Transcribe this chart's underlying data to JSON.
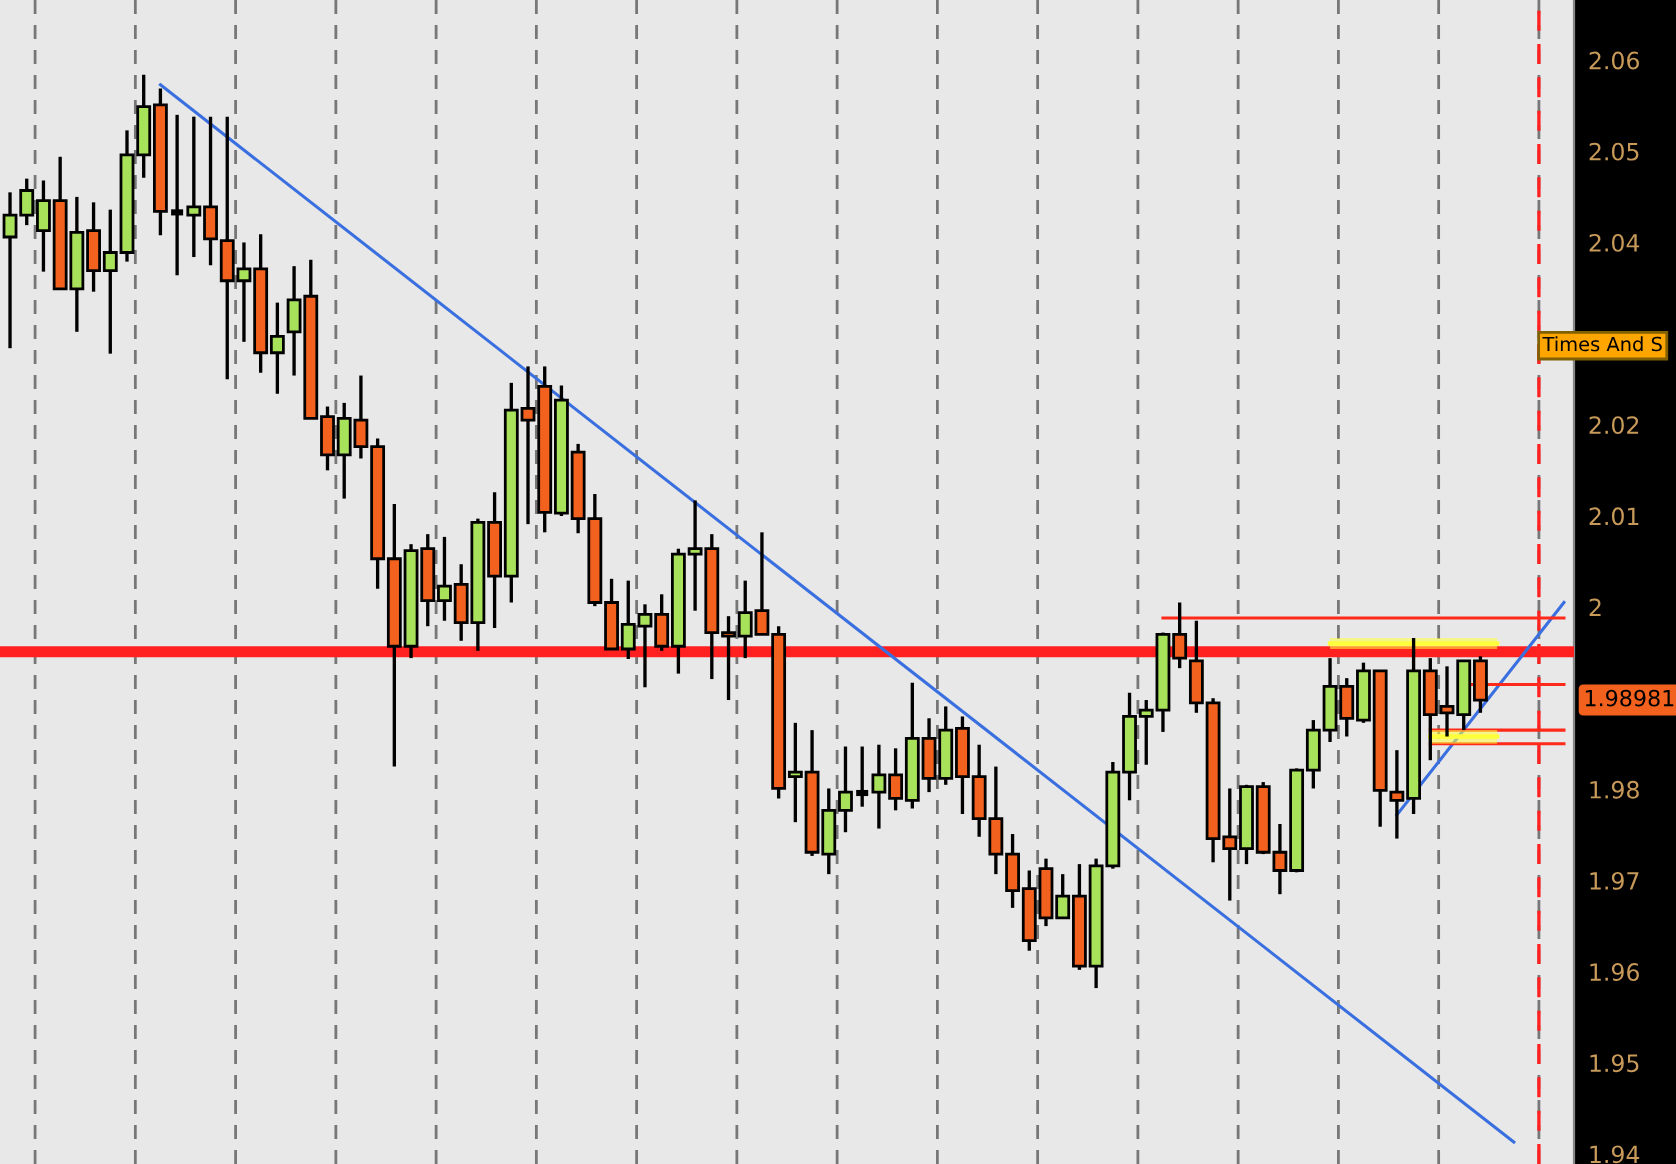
{
  "chart_data": {
    "type": "candlestick",
    "categories": [
      null,
      null,
      null,
      null,
      null,
      null,
      null,
      null,
      null,
      null,
      null,
      null,
      null,
      null,
      null,
      null,
      null,
      null,
      null,
      null,
      null,
      null,
      null,
      null,
      null,
      null,
      null,
      null,
      null,
      null,
      null,
      null,
      null,
      null,
      null,
      null,
      null,
      null,
      null,
      null,
      null,
      null,
      null,
      null,
      null,
      null,
      null,
      null,
      null,
      null,
      null,
      null,
      null,
      null,
      null,
      null,
      null,
      null,
      null,
      null,
      null,
      null,
      null,
      null,
      null,
      null,
      null,
      null,
      null,
      null,
      null,
      null,
      null,
      null,
      null,
      null,
      null,
      null,
      null,
      null,
      null,
      null,
      null,
      null,
      null,
      null,
      null,
      null,
      null,
      null,
      null,
      null,
      null,
      null
    ],
    "ohlc": [
      [
        2.0406,
        2.0455,
        2.0284,
        2.043
      ],
      [
        2.043,
        2.047,
        2.0419,
        2.0457
      ],
      [
        2.0413,
        2.0468,
        2.0368,
        2.0446
      ],
      [
        2.0446,
        2.0494,
        2.0349,
        2.0349
      ],
      [
        2.0349,
        2.045,
        2.0302,
        2.0411
      ],
      [
        2.0413,
        2.0444,
        2.0346,
        2.0369
      ],
      [
        2.0369,
        2.0436,
        2.0278,
        2.0389
      ],
      [
        2.0389,
        2.0523,
        2.0379,
        2.0496
      ],
      [
        2.0496,
        2.0584,
        2.0471,
        2.0549
      ],
      [
        2.0551,
        2.0569,
        2.0408,
        2.0434
      ],
      [
        2.0433,
        2.054,
        2.0364,
        2.0433
      ],
      [
        2.043,
        2.0538,
        2.0384,
        2.0439
      ],
      [
        2.0439,
        2.0538,
        2.0375,
        2.0404
      ],
      [
        2.0402,
        2.0538,
        2.025,
        2.0358
      ],
      [
        2.0358,
        2.04,
        2.0291,
        2.0371
      ],
      [
        2.0371,
        2.0409,
        2.0257,
        2.0279
      ],
      [
        2.0279,
        2.0334,
        2.0234,
        2.0297
      ],
      [
        2.0302,
        2.0374,
        2.0254,
        2.0337
      ],
      [
        2.0341,
        2.0381,
        2.0207,
        2.0207
      ],
      [
        2.0209,
        2.022,
        2.015,
        2.0167
      ],
      [
        2.0167,
        2.0224,
        2.0119,
        2.0207
      ],
      [
        2.0205,
        2.0254,
        2.0163,
        2.0176
      ],
      [
        2.0176,
        2.0185,
        2.002,
        2.0053
      ],
      [
        2.0053,
        2.0113,
        1.9825,
        1.9957
      ],
      [
        1.9957,
        2.0069,
        1.9944,
        2.0062
      ],
      [
        2.0064,
        2.008,
        1.9979,
        2.0007
      ],
      [
        2.0007,
        2.0077,
        1.9985,
        2.0023
      ],
      [
        2.0025,
        2.0047,
        1.9963,
        1.9983
      ],
      [
        1.9983,
        2.0097,
        1.9952,
        2.0093
      ],
      [
        2.0093,
        2.0126,
        1.9977,
        2.0034
      ],
      [
        2.0034,
        2.0246,
        2.0005,
        2.0216
      ],
      [
        2.0218,
        2.0264,
        2.0091,
        2.0205
      ],
      [
        2.0242,
        2.0264,
        2.0082,
        2.0104
      ],
      [
        2.0103,
        2.0243,
        2.01,
        2.0227
      ],
      [
        2.017,
        2.0179,
        2.0081,
        2.0097
      ],
      [
        2.0097,
        2.0124,
        2.0001,
        2.0005
      ],
      [
        2.0005,
        2.0031,
        1.9954,
        1.9954
      ],
      [
        1.9954,
        2.0029,
        1.9943,
        1.9981
      ],
      [
        1.9979,
        2.0003,
        1.9912,
        1.9992
      ],
      [
        1.9992,
        2.0014,
        1.9952,
        1.9957
      ],
      [
        1.9957,
        2.0064,
        1.9927,
        2.0058
      ],
      [
        2.0058,
        2.0117,
        1.9996,
        2.0064
      ],
      [
        2.0064,
        2.008,
        1.9921,
        1.9972
      ],
      [
        1.9972,
        1.999,
        1.9898,
        1.9968
      ],
      [
        1.9968,
        2.0029,
        1.9944,
        1.9994
      ],
      [
        1.9996,
        2.0082,
        1.997,
        1.997
      ],
      [
        1.997,
        1.9979,
        1.979,
        1.9801
      ],
      [
        1.9814,
        1.9873,
        1.9764,
        1.9819
      ],
      [
        1.9819,
        1.9865,
        1.9727,
        1.9731
      ],
      [
        1.9729,
        1.9801,
        1.9707,
        1.9777
      ],
      [
        1.9777,
        1.9847,
        1.9753,
        1.9797
      ],
      [
        1.9796,
        1.9847,
        1.9781,
        1.9796
      ],
      [
        1.9797,
        1.9849,
        1.9757,
        1.9816
      ],
      [
        1.9816,
        1.9845,
        1.9777,
        1.979
      ],
      [
        1.9788,
        1.9917,
        1.9779,
        1.9856
      ],
      [
        1.9856,
        1.9878,
        1.9797,
        1.9812
      ],
      [
        1.9812,
        1.9891,
        1.9805,
        1.9865
      ],
      [
        1.9867,
        1.988,
        1.9773,
        1.9814
      ],
      [
        1.9814,
        1.9849,
        1.9748,
        1.9768
      ],
      [
        1.9768,
        1.9825,
        1.9707,
        1.9729
      ],
      [
        1.9729,
        1.9751,
        1.967,
        1.9689
      ],
      [
        1.9691,
        1.9711,
        1.9623,
        1.9634
      ],
      [
        1.9713,
        1.9724,
        1.965,
        1.9659
      ],
      [
        1.9659,
        1.9707,
        1.9659,
        1.9683
      ],
      [
        1.9683,
        1.9718,
        1.9602,
        1.9606
      ],
      [
        1.9606,
        1.9724,
        1.9582,
        1.9716
      ],
      [
        1.9716,
        1.983,
        1.9713,
        1.9819
      ],
      [
        1.9819,
        1.9906,
        1.9788,
        1.988
      ],
      [
        1.988,
        1.9898,
        1.9827,
        1.9887
      ],
      [
        1.9887,
        1.9972,
        1.9863,
        1.997
      ],
      [
        1.997,
        2.0005,
        1.9933,
        1.9944
      ],
      [
        1.9941,
        1.9985,
        1.9884,
        1.9895
      ],
      [
        1.9895,
        1.99,
        1.972,
        1.9746
      ],
      [
        1.9748,
        1.9801,
        1.9678,
        1.9735
      ],
      [
        1.9735,
        1.9805,
        1.9718,
        1.9803
      ],
      [
        1.9803,
        1.9808,
        1.9729,
        1.9731
      ],
      [
        1.9731,
        1.9762,
        1.9685,
        1.9711
      ],
      [
        1.9711,
        1.9823,
        1.9709,
        1.9821
      ],
      [
        1.9821,
        1.9876,
        1.9801,
        1.9865
      ],
      [
        1.9865,
        1.9944,
        1.9852,
        1.9913
      ],
      [
        1.9913,
        1.9922,
        1.9858,
        1.9878
      ],
      [
        1.9876,
        1.9939,
        1.9873,
        1.993
      ],
      [
        1.993,
        1.993,
        1.9759,
        1.9799
      ],
      [
        1.9797,
        1.9843,
        1.9746,
        1.9788
      ],
      [
        1.979,
        1.9966,
        1.9773,
        1.993
      ],
      [
        1.993,
        1.9944,
        1.9832,
        1.9882
      ],
      [
        1.9891,
        1.9935,
        1.9858,
        1.9884
      ],
      [
        1.9882,
        1.9941,
        1.9865,
        1.9941
      ],
      [
        1.9941,
        1.9946,
        1.9884,
        1.9898
      ],
      null,
      null,
      null,
      null,
      null
    ],
    "colors": [
      "#a8e25a",
      "#a8e25a",
      "#a8e25a",
      "#f2621e",
      "#a8e25a",
      "#f2621e",
      "#a8e25a",
      "#a8e25a",
      "#a8e25a",
      "#f2621e",
      "#000000",
      "#a8e25a",
      "#f2621e",
      "#f2621e",
      "#a8e25a",
      "#f2621e",
      "#a8e25a",
      "#a8e25a",
      "#f2621e",
      "#f2621e",
      "#a8e25a",
      "#f2621e",
      "#f2621e",
      "#f2621e",
      "#a8e25a",
      "#f2621e",
      "#a8e25a",
      "#f2621e",
      "#a8e25a",
      "#f2621e",
      "#a8e25a",
      "#f2621e",
      "#f2621e",
      "#a8e25a",
      "#f2621e",
      "#f2621e",
      "#f2621e",
      "#a8e25a",
      "#a8e25a",
      "#f2621e",
      "#a8e25a",
      "#a8e25a",
      "#f2621e",
      "#f2621e",
      "#a8e25a",
      "#f2621e",
      "#f2621e",
      "#a8e25a",
      "#f2621e",
      "#a8e25a",
      "#a8e25a",
      "#000000",
      "#a8e25a",
      "#f2621e",
      "#a8e25a",
      "#f2621e",
      "#a8e25a",
      "#f2621e",
      "#f2621e",
      "#f2621e",
      "#f2621e",
      "#f2621e",
      "#f2621e",
      "#a8e25a",
      "#f2621e",
      "#a8e25a",
      "#a8e25a",
      "#a8e25a",
      "#a8e25a",
      "#a8e25a",
      "#f2621e",
      "#f2621e",
      "#f2621e",
      "#f2621e",
      "#a8e25a",
      "#f2621e",
      "#f2621e",
      "#a8e25a",
      "#a8e25a",
      "#a8e25a",
      "#f2621e",
      "#a8e25a",
      "#f2621e",
      "#f2621e",
      "#a8e25a",
      "#f2621e",
      "#f2621e",
      "#a8e25a",
      "#f2621e",
      null,
      null,
      null,
      null,
      null
    ],
    "series": [
      {
        "type": "line",
        "color": "#3a6fe0",
        "values": [
          null,
          null,
          null,
          null,
          null,
          null,
          null,
          null,
          null,
          2.0573,
          null,
          null,
          null,
          null,
          null,
          null,
          null,
          null,
          null,
          null,
          null,
          null,
          null,
          null,
          null,
          null,
          null,
          null,
          null,
          null,
          null,
          null,
          null,
          null,
          null,
          null,
          null,
          null,
          null,
          null,
          null,
          null,
          null,
          null,
          null,
          null,
          null,
          null,
          null,
          null,
          null,
          null,
          null,
          null,
          null,
          null,
          null,
          null,
          null,
          null,
          null,
          null,
          null,
          null,
          null,
          null,
          null,
          null,
          null,
          null,
          null,
          null,
          null,
          null,
          null,
          null,
          null,
          null,
          null,
          null,
          null,
          null,
          null,
          null,
          null,
          null,
          null,
          null,
          null,
          null,
          1.9413,
          null,
          null,
          null
        ]
      },
      {
        "type": "line",
        "color": "#3a6fe0",
        "values": [
          null,
          null,
          null,
          null,
          null,
          null,
          null,
          null,
          null,
          null,
          null,
          null,
          null,
          null,
          null,
          null,
          null,
          null,
          null,
          null,
          null,
          null,
          null,
          null,
          null,
          null,
          null,
          null,
          null,
          null,
          null,
          null,
          null,
          null,
          null,
          null,
          null,
          null,
          null,
          null,
          null,
          null,
          null,
          null,
          null,
          null,
          null,
          null,
          null,
          null,
          null,
          null,
          null,
          null,
          null,
          null,
          null,
          null,
          null,
          null,
          null,
          null,
          null,
          null,
          null,
          null,
          null,
          null,
          null,
          null,
          null,
          null,
          null,
          null,
          null,
          null,
          null,
          null,
          null,
          null,
          null,
          null,
          null,
          1.9772,
          null,
          null,
          null,
          null,
          null,
          null,
          null,
          null,
          null,
          2.0005
        ]
      },
      {
        "type": "line",
        "color": "#ff2a1a",
        "values": [
          null,
          null,
          null,
          null,
          null,
          null,
          null,
          null,
          null,
          null,
          null,
          null,
          null,
          null,
          null,
          null,
          null,
          null,
          null,
          null,
          null,
          null,
          null,
          null,
          null,
          null,
          null,
          null,
          null,
          null,
          null,
          null,
          null,
          null,
          null,
          null,
          null,
          null,
          null,
          null,
          null,
          null,
          null,
          null,
          null,
          null,
          null,
          null,
          null,
          null,
          null,
          null,
          null,
          null,
          null,
          null,
          null,
          null,
          null,
          null,
          null,
          null,
          null,
          null,
          null,
          null,
          null,
          null,
          null,
          1.9988,
          null,
          null,
          null,
          null,
          null,
          null,
          null,
          null,
          null,
          null,
          null,
          null,
          null,
          null,
          null,
          null,
          null,
          null,
          null,
          null,
          null,
          null,
          null,
          1.9988
        ]
      },
      {
        "type": "line",
        "color": "#ff2a1a",
        "values": [
          null,
          null,
          null,
          null,
          null,
          null,
          null,
          null,
          null,
          null,
          null,
          null,
          null,
          null,
          null,
          null,
          null,
          null,
          null,
          null,
          null,
          null,
          null,
          null,
          null,
          null,
          null,
          null,
          null,
          null,
          null,
          null,
          null,
          null,
          null,
          null,
          null,
          null,
          null,
          null,
          null,
          null,
          null,
          null,
          null,
          null,
          null,
          null,
          null,
          null,
          null,
          null,
          null,
          null,
          null,
          null,
          null,
          null,
          null,
          null,
          null,
          null,
          null,
          null,
          null,
          null,
          null,
          null,
          null,
          null,
          null,
          null,
          null,
          null,
          null,
          null,
          null,
          null,
          null,
          null,
          null,
          null,
          null,
          null,
          null,
          null,
          null,
          1.9915,
          null,
          null,
          null,
          null,
          null,
          1.9915
        ]
      },
      {
        "type": "line",
        "color": "#ff2a1a",
        "values": [
          null,
          null,
          null,
          null,
          null,
          null,
          null,
          null,
          null,
          null,
          null,
          null,
          null,
          null,
          null,
          null,
          null,
          null,
          null,
          null,
          null,
          null,
          null,
          null,
          null,
          null,
          null,
          null,
          null,
          null,
          null,
          null,
          null,
          null,
          null,
          null,
          null,
          null,
          null,
          null,
          null,
          null,
          null,
          null,
          null,
          null,
          null,
          null,
          null,
          null,
          null,
          null,
          null,
          null,
          null,
          null,
          null,
          null,
          null,
          null,
          null,
          null,
          null,
          null,
          null,
          null,
          null,
          null,
          null,
          null,
          null,
          null,
          null,
          null,
          null,
          null,
          null,
          null,
          null,
          null,
          null,
          null,
          null,
          null,
          null,
          1.9865,
          null,
          null,
          null,
          null,
          null,
          null,
          null,
          1.9865
        ]
      },
      {
        "type": "line",
        "color": "#ff2a1a",
        "values": [
          null,
          null,
          null,
          null,
          null,
          null,
          null,
          null,
          null,
          null,
          null,
          null,
          null,
          null,
          null,
          null,
          null,
          null,
          null,
          null,
          null,
          null,
          null,
          null,
          null,
          null,
          null,
          null,
          null,
          null,
          null,
          null,
          null,
          null,
          null,
          null,
          null,
          null,
          null,
          null,
          null,
          null,
          null,
          null,
          null,
          null,
          null,
          null,
          null,
          null,
          null,
          null,
          null,
          null,
          null,
          null,
          null,
          null,
          null,
          null,
          null,
          null,
          null,
          null,
          null,
          null,
          null,
          null,
          null,
          null,
          null,
          null,
          null,
          null,
          null,
          null,
          null,
          null,
          null,
          null,
          null,
          null,
          null,
          null,
          null,
          1.985,
          null,
          null,
          null,
          null,
          null,
          null,
          null,
          1.985
        ]
      },
      {
        "type": "line",
        "color": "#ffff3c",
        "values": [
          null,
          null,
          null,
          null,
          null,
          null,
          null,
          null,
          null,
          null,
          null,
          null,
          null,
          null,
          null,
          null,
          null,
          null,
          null,
          null,
          null,
          null,
          null,
          null,
          null,
          null,
          null,
          null,
          null,
          null,
          null,
          null,
          null,
          null,
          null,
          null,
          null,
          null,
          null,
          null,
          null,
          null,
          null,
          null,
          null,
          null,
          null,
          null,
          null,
          null,
          null,
          null,
          null,
          null,
          null,
          null,
          null,
          null,
          null,
          null,
          null,
          null,
          null,
          null,
          null,
          null,
          null,
          null,
          null,
          null,
          null,
          null,
          null,
          null,
          null,
          null,
          null,
          null,
          null,
          1.996,
          null,
          null,
          null,
          null,
          null,
          null,
          null,
          null,
          null,
          1.996,
          null,
          null,
          null,
          null
        ],
        "upper": [
          null,
          null,
          null,
          null,
          null,
          null,
          null,
          null,
          null,
          null,
          null,
          null,
          null,
          null,
          null,
          null,
          null,
          null,
          null,
          null,
          null,
          null,
          null,
          null,
          null,
          null,
          null,
          null,
          null,
          null,
          null,
          null,
          null,
          null,
          null,
          null,
          null,
          null,
          null,
          null,
          null,
          null,
          null,
          null,
          null,
          null,
          null,
          null,
          null,
          null,
          null,
          null,
          null,
          null,
          null,
          null,
          null,
          null,
          null,
          null,
          null,
          null,
          null,
          null,
          null,
          null,
          null,
          null,
          null,
          null,
          null,
          null,
          null,
          null,
          null,
          null,
          null,
          null,
          null,
          1.9966,
          null,
          null,
          null,
          null,
          null,
          null,
          null,
          null,
          null,
          1.9966,
          null,
          null,
          null,
          null
        ],
        "lower": [
          null,
          null,
          null,
          null,
          null,
          null,
          null,
          null,
          null,
          null,
          null,
          null,
          null,
          null,
          null,
          null,
          null,
          null,
          null,
          null,
          null,
          null,
          null,
          null,
          null,
          null,
          null,
          null,
          null,
          null,
          null,
          null,
          null,
          null,
          null,
          null,
          null,
          null,
          null,
          null,
          null,
          null,
          null,
          null,
          null,
          null,
          null,
          null,
          null,
          null,
          null,
          null,
          null,
          null,
          null,
          null,
          null,
          null,
          null,
          null,
          null,
          null,
          null,
          null,
          null,
          null,
          null,
          null,
          null,
          null,
          null,
          null,
          null,
          null,
          null,
          null,
          null,
          null,
          null,
          1.9954,
          null,
          null,
          null,
          null,
          null,
          null,
          null,
          null,
          null,
          1.9954,
          null,
          null,
          null,
          null
        ]
      },
      {
        "type": "line",
        "color": "#ffff3c",
        "values": [
          null,
          null,
          null,
          null,
          null,
          null,
          null,
          null,
          null,
          null,
          null,
          null,
          null,
          null,
          null,
          null,
          null,
          null,
          null,
          null,
          null,
          null,
          null,
          null,
          null,
          null,
          null,
          null,
          null,
          null,
          null,
          null,
          null,
          null,
          null,
          null,
          null,
          null,
          null,
          null,
          null,
          null,
          null,
          null,
          null,
          null,
          null,
          null,
          null,
          null,
          null,
          null,
          null,
          null,
          null,
          null,
          null,
          null,
          null,
          null,
          null,
          null,
          null,
          null,
          null,
          null,
          null,
          null,
          null,
          null,
          null,
          null,
          null,
          null,
          null,
          null,
          null,
          null,
          null,
          null,
          null,
          null,
          null,
          null,
          null,
          1.9858,
          null,
          null,
          null,
          1.9858,
          null,
          null,
          null,
          null
        ],
        "upper": [
          null,
          null,
          null,
          null,
          null,
          null,
          null,
          null,
          null,
          null,
          null,
          null,
          null,
          null,
          null,
          null,
          null,
          null,
          null,
          null,
          null,
          null,
          null,
          null,
          null,
          null,
          null,
          null,
          null,
          null,
          null,
          null,
          null,
          null,
          null,
          null,
          null,
          null,
          null,
          null,
          null,
          null,
          null,
          null,
          null,
          null,
          null,
          null,
          null,
          null,
          null,
          null,
          null,
          null,
          null,
          null,
          null,
          null,
          null,
          null,
          null,
          null,
          null,
          null,
          null,
          null,
          null,
          null,
          null,
          null,
          null,
          null,
          null,
          null,
          null,
          null,
          null,
          null,
          null,
          null,
          null,
          null,
          null,
          null,
          null,
          1.9865,
          null,
          null,
          null,
          1.9865,
          null,
          null,
          null,
          null
        ],
        "lower": [
          null,
          null,
          null,
          null,
          null,
          null,
          null,
          null,
          null,
          null,
          null,
          null,
          null,
          null,
          null,
          null,
          null,
          null,
          null,
          null,
          null,
          null,
          null,
          null,
          null,
          null,
          null,
          null,
          null,
          null,
          null,
          null,
          null,
          null,
          null,
          null,
          null,
          null,
          null,
          null,
          null,
          null,
          null,
          null,
          null,
          null,
          null,
          null,
          null,
          null,
          null,
          null,
          null,
          null,
          null,
          null,
          null,
          null,
          null,
          null,
          null,
          null,
          null,
          null,
          null,
          null,
          null,
          null,
          null,
          null,
          null,
          null,
          null,
          null,
          null,
          null,
          null,
          null,
          null,
          null,
          null,
          null,
          null,
          null,
          null,
          1.985,
          null,
          null,
          null,
          1.985,
          null,
          null,
          null,
          null
        ]
      }
    ],
    "ref_lines": [
      {
        "axis": "y",
        "value": 1.9951,
        "color": "#ff2020",
        "line_style": "solid"
      }
    ],
    "ylim": [
      1.9389,
      2.0666
    ],
    "yticks": [
      {
        "value": 2.06,
        "label": "2.06"
      },
      {
        "value": 2.05,
        "label": "2.05"
      },
      {
        "value": 2.04,
        "label": "2.04"
      },
      {
        "value": 2.02,
        "label": "2.02"
      },
      {
        "value": 2.01,
        "label": "2.01"
      },
      {
        "value": 2.0,
        "label": "2"
      },
      {
        "value": 1.98,
        "label": "1.98"
      },
      {
        "value": 1.97,
        "label": "1.97"
      },
      {
        "value": 1.96,
        "label": "1.96"
      },
      {
        "value": 1.95,
        "label": "1.95"
      },
      {
        "value": 1.94,
        "label": "1.94"
      }
    ],
    "tick_labels": "y",
    "grid": "x",
    "legend": false,
    "annotations": [
      "Times And S",
      "1.98981"
    ]
  }
}
